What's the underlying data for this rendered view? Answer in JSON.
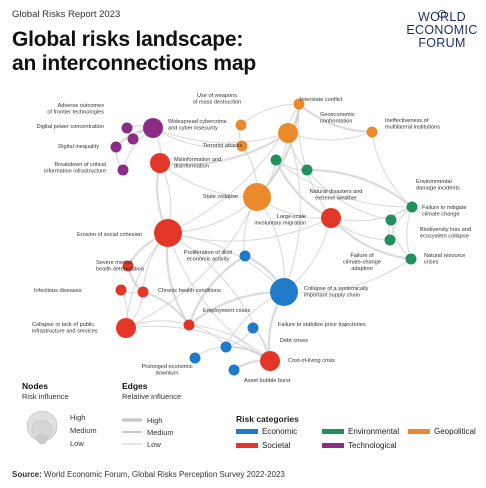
{
  "header": {
    "report": "Global Risks Report 2023",
    "title_line1": "Global risks landscape:",
    "title_line2": "an interconnections map",
    "logo_line1": "WORLD",
    "logo_line2": "ECONOMIC",
    "logo_line3": "FORUM"
  },
  "colors": {
    "economic": "#1f7ac9",
    "societal": "#e23628",
    "environmental": "#22905a",
    "geopolitical": "#ea8a2a",
    "technological": "#8b2c87",
    "edge": "#cfcfcf"
  },
  "nodes": [
    {
      "id": "adverse-frontier-tech",
      "label": [
        "Adverse outcomes",
        "of frontier technologies"
      ],
      "category": "technological",
      "influence": "low"
    },
    {
      "id": "digital-power",
      "label": [
        "Digital power concentration"
      ],
      "category": "technological",
      "influence": "low"
    },
    {
      "id": "digital-inequality",
      "label": [
        "Digital inequality"
      ],
      "category": "technological",
      "influence": "low"
    },
    {
      "id": "critical-infrastructure",
      "label": [
        "Breakdown of critical",
        "information infrastructure"
      ],
      "category": "technological",
      "influence": "low"
    },
    {
      "id": "cybercrime",
      "label": [
        "Widespread cybercrime",
        "and cyber insecurity"
      ],
      "category": "technological",
      "influence": "medium"
    },
    {
      "id": "misinformation",
      "label": [
        "Misinformation and",
        "disinformation"
      ],
      "category": "societal",
      "influence": "medium"
    },
    {
      "id": "wmd",
      "label": [
        "Use of weapons",
        "of mass destruction"
      ],
      "category": "geopolitical",
      "influence": "low"
    },
    {
      "id": "interstate-conflict",
      "label": [
        "Interstate conflict"
      ],
      "category": "geopolitical",
      "influence": "low"
    },
    {
      "id": "geoeconomic",
      "label": [
        "Geoeconomic",
        "confrontation"
      ],
      "category": "geopolitical",
      "influence": "medium"
    },
    {
      "id": "multilateral",
      "label": [
        "Ineffectiveness of",
        "multilateral institutions"
      ],
      "category": "geopolitical",
      "influence": "low"
    },
    {
      "id": "terrorist",
      "label": [
        "Terrorist attacks"
      ],
      "category": "geopolitical",
      "influence": "low"
    },
    {
      "id": "state-collapse",
      "label": [
        "State collapse"
      ],
      "category": "geopolitical",
      "influence": "high"
    },
    {
      "id": "natural-disasters",
      "label": [
        "Natural disasters and",
        "extreme weather"
      ],
      "category": "environmental",
      "influence": "low"
    },
    {
      "id": "env-damage",
      "label": [
        "Environmental",
        "damage incidents"
      ],
      "category": "environmental",
      "influence": "low"
    },
    {
      "id": "climate-mitigation",
      "label": [
        "Failure to mitigate",
        "climate change"
      ],
      "category": "environmental",
      "influence": "low"
    },
    {
      "id": "biodiversity",
      "label": [
        "Biodiversity loss and",
        "ecosystem collapse"
      ],
      "category": "environmental",
      "influence": "low"
    },
    {
      "id": "climate-adaptation",
      "label": [
        "Failure of",
        "climate-change",
        "adaption"
      ],
      "category": "environmental",
      "influence": "low"
    },
    {
      "id": "natural-resource",
      "label": [
        "Natural resource",
        "crises"
      ],
      "category": "environmental",
      "influence": "low"
    },
    {
      "id": "involuntary-migration",
      "label": [
        "Large-scale",
        "involuntary migration"
      ],
      "category": "societal",
      "influence": "medium"
    },
    {
      "id": "social-cohesion",
      "label": [
        "Erosion of social cohesion"
      ],
      "category": "societal",
      "influence": "high"
    },
    {
      "id": "illicit-activity",
      "label": [
        "Proliferation of illicit",
        "economic activity"
      ],
      "category": "economic",
      "influence": "low"
    },
    {
      "id": "mental-health",
      "label": [
        "Severe mental",
        "health deterioration"
      ],
      "category": "societal",
      "influence": "low"
    },
    {
      "id": "infectious",
      "label": [
        "Infectious diseases"
      ],
      "category": "societal",
      "influence": "low"
    },
    {
      "id": "chronic-health",
      "label": [
        "Chronic health conditions"
      ],
      "category": "societal",
      "influence": "low"
    },
    {
      "id": "supply-chain",
      "label": [
        "Collapse of a systemically",
        "important supply chain"
      ],
      "category": "economic",
      "influence": "high"
    },
    {
      "id": "public-infrastructure",
      "label": [
        "Collapse or lack of public",
        "infrastructure and services"
      ],
      "category": "societal",
      "influence": "medium"
    },
    {
      "id": "employment",
      "label": [
        "Employment crises"
      ],
      "category": "societal",
      "influence": "low"
    },
    {
      "id": "price-trajectories",
      "label": [
        "Failure to stabilize price trajectories"
      ],
      "category": "economic",
      "influence": "low"
    },
    {
      "id": "debt",
      "label": [
        "Debt crises"
      ],
      "category": "economic",
      "influence": "low"
    },
    {
      "id": "downturn",
      "label": [
        "Prolonged economic",
        "downturn"
      ],
      "category": "economic",
      "influence": "low"
    },
    {
      "id": "cost-of-living",
      "label": [
        "Cost-of-living crisis"
      ],
      "category": "societal",
      "influence": "medium"
    },
    {
      "id": "asset-bubble",
      "label": [
        "Asset bubble burst"
      ],
      "category": "economic",
      "influence": "low"
    }
  ],
  "legend": {
    "nodes_title": "Nodes",
    "nodes_sub": "Risk influence",
    "edges_title": "Edges",
    "edges_sub": "Relative influence",
    "high": "High",
    "medium": "Medium",
    "low": "Low",
    "categories_title": "Risk categories",
    "categories": [
      {
        "key": "economic",
        "label": "Economic"
      },
      {
        "key": "environmental",
        "label": "Environmental"
      },
      {
        "key": "geopolitical",
        "label": "Geopolitical"
      },
      {
        "key": "societal",
        "label": "Societal"
      },
      {
        "key": "technological",
        "label": "Technological"
      }
    ]
  },
  "source": {
    "prefix": "Source:",
    "text": "World Economic Forum, Global Risks Perception Survey 2022-2023"
  }
}
